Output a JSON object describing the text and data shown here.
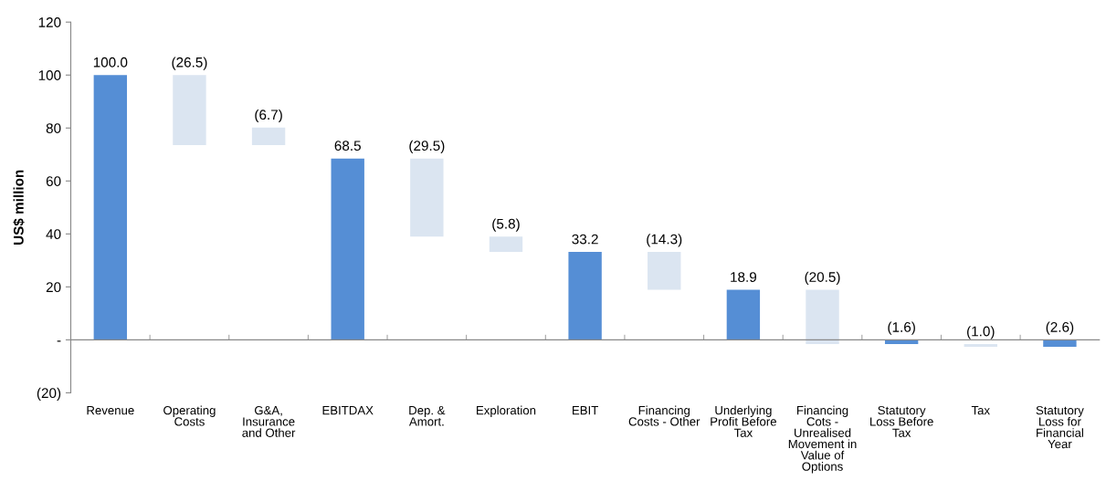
{
  "chart_data": {
    "type": "bar",
    "ylabel": "US$ million",
    "categories": [
      "Revenue",
      "Operating\nCosts",
      "G&A,\nInsurance\nand Other",
      "EBITDAX",
      "Dep. &\nAmort.",
      "Exploration",
      "EBIT",
      "Financing\nCosts - Other",
      "Underlying\nProfit Before\nTax",
      "Financing\nCots -\nUnrealised\nMovement in\nValue of\nOptions",
      "Statutory\nLoss Before\nTax",
      "Tax",
      "Statutory\nLoss for\nFinancial\nYear"
    ],
    "values": [
      100.0,
      -26.5,
      -6.7,
      68.5,
      -29.5,
      -5.8,
      33.2,
      -14.3,
      18.9,
      -20.5,
      -1.6,
      -1.0,
      -2.6
    ],
    "base": [
      0,
      100.0,
      80.2,
      0,
      68.5,
      39.0,
      0,
      33.2,
      0,
      18.9,
      0,
      -1.6,
      0
    ],
    "colors": [
      "#558ed5",
      "#dbe5f1",
      "#dbe5f1",
      "#558ed5",
      "#dbe5f1",
      "#dbe5f1",
      "#558ed5",
      "#dbe5f1",
      "#558ed5",
      "#dbe5f1",
      "#558ed5",
      "#dbe5f1",
      "#558ed5"
    ],
    "value_labels": [
      "100.0",
      "(26.5)",
      "(6.7)",
      "68.5",
      "(29.5)",
      "(5.8)",
      "33.2",
      "(14.3)",
      "18.9",
      "(20.5)",
      "(1.6)",
      "(1.0)",
      "(2.6)"
    ],
    "ylim": [
      -20,
      120
    ],
    "yticks": [
      {
        "value": -20,
        "label": "(20)"
      },
      {
        "value": 0,
        "label": "-"
      },
      20,
      40,
      60,
      80,
      100,
      120
    ],
    "legend": false
  }
}
